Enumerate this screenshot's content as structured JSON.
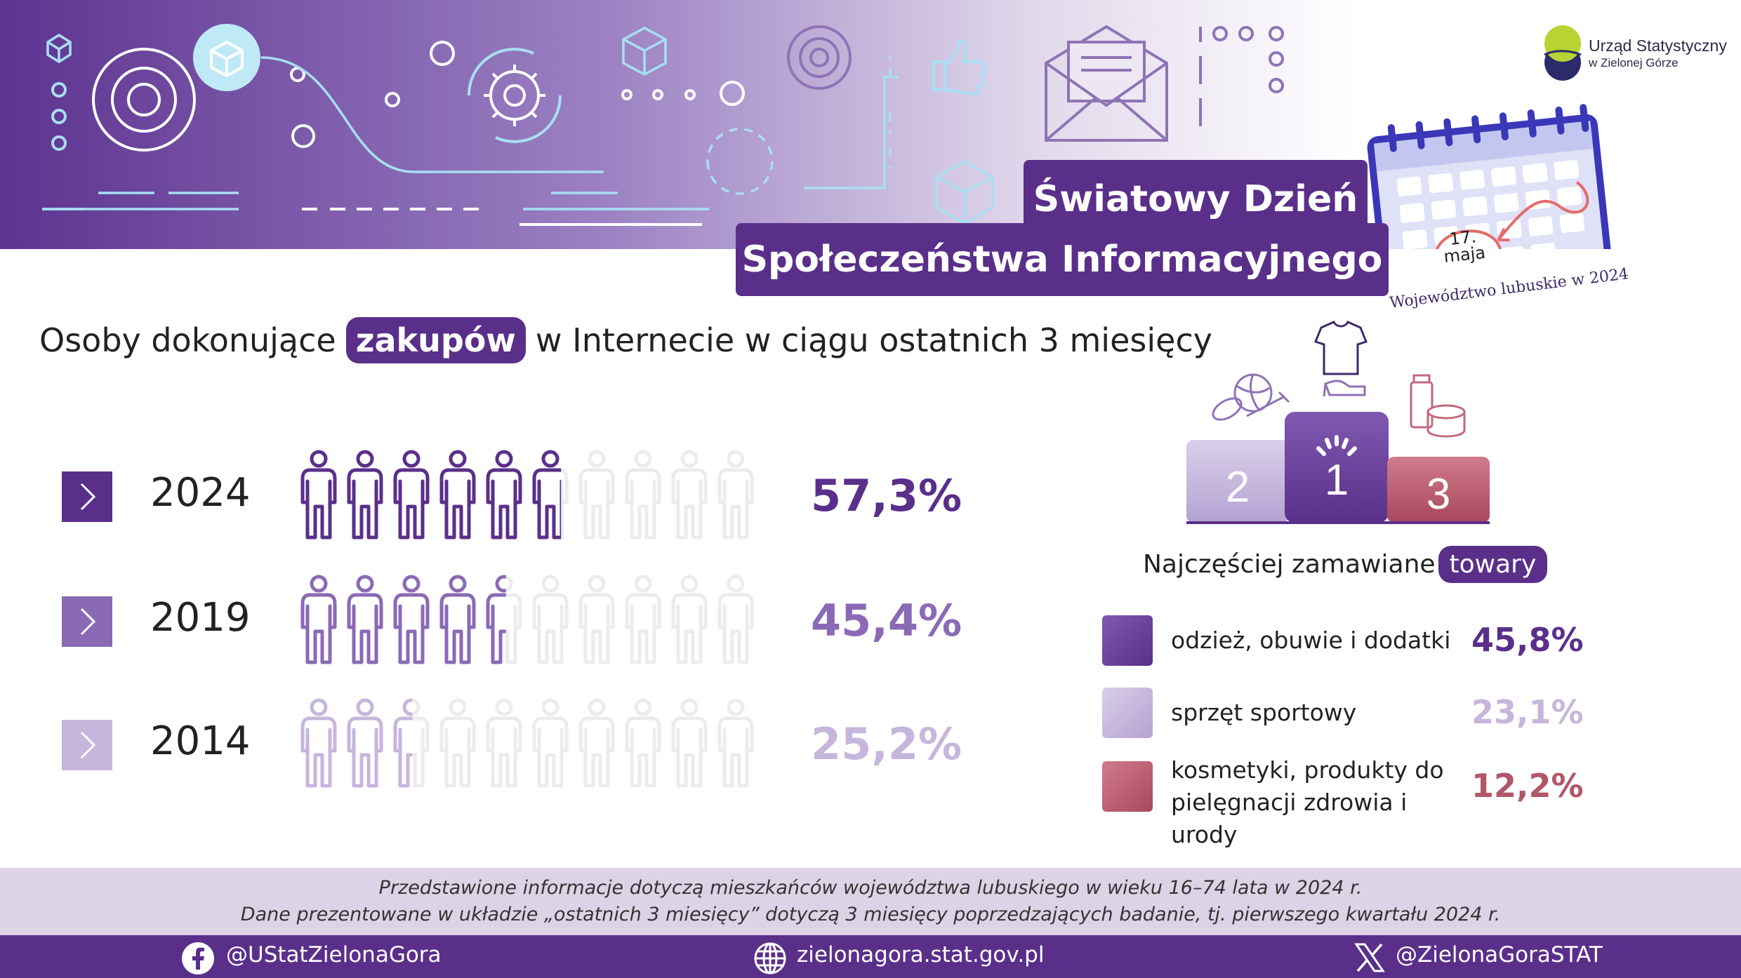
{
  "header": {
    "title_line1": "Światowy Dzień",
    "title_line2": "Społeczeństwa Informacyjnego",
    "logo_line1": "Urząd Statystyczny",
    "logo_line2": "w Zielonej Górze",
    "calendar_date": "17. maja",
    "calendar_caption": "Województwo lubuskie w 2024"
  },
  "subtitle": {
    "before": "Osoby dokonujące",
    "highlight": "zakupów",
    "after": "w Internecie w ciągu ostatnich 3 miesięcy"
  },
  "colors": {
    "dark_purple": "#5a2f8a",
    "mid_purple": "#8a6ab5",
    "light_purple": "#c6b6dc",
    "rose": "#b3566a",
    "empty_icon": "#ececec"
  },
  "chart_data": [
    {
      "type": "bar",
      "categories": [
        "2024",
        "2019",
        "2014"
      ],
      "values": [
        57.3,
        45.4,
        25.2
      ],
      "value_labels": [
        "57,3%",
        "45,4%",
        "25,2%"
      ],
      "ylim": [
        0,
        100
      ],
      "icon_units": 10
    },
    {
      "type": "bar",
      "title_before": "Najczęściej zamawiane",
      "title_highlight": "towary",
      "podium_labels": [
        "2",
        "1",
        "3"
      ],
      "categories": [
        "odzież, obuwie i dodatki",
        "sprzęt sportowy",
        "kosmetyki, produkty do pielęgnacji zdrowia i urody"
      ],
      "values": [
        45.8,
        23.1,
        12.2
      ],
      "value_labels": [
        "45,8%",
        "23,1%",
        "12,2%"
      ]
    }
  ],
  "notes": {
    "line1": "Przedstawione informacje dotyczą mieszkańców województwa lubuskiego w wieku 16–74 lata w 2024 r.",
    "line2": "Dane prezentowane w układzie „ostatnich 3 miesięcy” dotyczą 3 miesięcy poprzedzających badanie, tj. pierwszego kwartału 2024 r."
  },
  "footer": {
    "facebook": "@UStatZielonaGora",
    "website": "zielonagora.stat.gov.pl",
    "x": "@ZielonaGoraSTAT",
    "icons": [
      "facebook-icon",
      "globe-icon",
      "x-icon"
    ]
  }
}
